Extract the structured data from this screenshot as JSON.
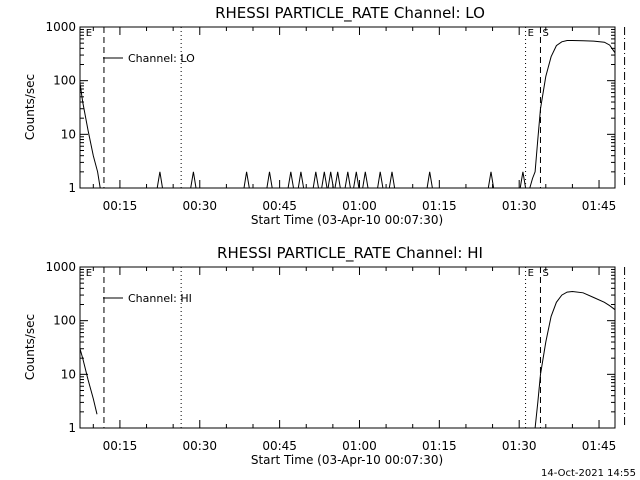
{
  "footer": {
    "date_stamp": "14-Oct-2021 14:55"
  },
  "chart_data": [
    {
      "type": "line",
      "title": "RHESSI PARTICLE_RATE Channel: LO",
      "xlabel": "Start Time (03-Apr-10 00:07:30)",
      "ylabel": "Counts/sec",
      "yscale": "log",
      "ylim": [
        1,
        1000
      ],
      "xlim_minutes": [
        7.5,
        108
      ],
      "x_ticks": [
        "00:15",
        "00:30",
        "00:45",
        "01:00",
        "01:15",
        "01:30",
        "01:45"
      ],
      "x_tick_minutes": [
        15,
        30,
        45,
        60,
        75,
        90,
        105
      ],
      "y_ticks": [
        "1",
        "10",
        "100",
        "1000"
      ],
      "y_tick_values": [
        1,
        10,
        100,
        1000
      ],
      "legend": "Channel: LO",
      "markers": [
        {
          "label": "E",
          "minute": 8.2,
          "style": "none"
        },
        {
          "label": "",
          "minute": 12.0,
          "style": "dashed"
        },
        {
          "label": "",
          "minute": 26.5,
          "style": "dotted"
        },
        {
          "label": "E",
          "minute": 91.2,
          "style": "dotted"
        },
        {
          "label": "S",
          "minute": 94.0,
          "style": "dashed"
        },
        {
          "label": "",
          "minute": 109.8,
          "style": "dashdot"
        }
      ],
      "series": [
        {
          "name": "counts",
          "x": [
            7.5,
            8.0,
            9.0,
            10.0,
            10.8,
            11.3
          ],
          "values": [
            90,
            40,
            12,
            4,
            2,
            1
          ]
        },
        {
          "name": "counts",
          "x": [
            22.0,
            22.5,
            23.0
          ],
          "values": [
            1,
            2,
            1
          ]
        },
        {
          "name": "counts",
          "x": [
            28.3,
            28.8,
            29.3
          ],
          "values": [
            1,
            2,
            1
          ]
        },
        {
          "name": "counts",
          "x": [
            38.3,
            38.8,
            39.3
          ],
          "values": [
            1,
            2,
            1
          ]
        },
        {
          "name": "counts",
          "x": [
            42.6,
            43.1,
            43.6
          ],
          "values": [
            1,
            2,
            1
          ]
        },
        {
          "name": "counts",
          "x": [
            46.6,
            47.1,
            47.6
          ],
          "values": [
            1,
            2,
            1
          ]
        },
        {
          "name": "counts",
          "x": [
            48.5,
            49.0,
            49.5
          ],
          "values": [
            1,
            2,
            1
          ]
        },
        {
          "name": "counts",
          "x": [
            51.3,
            51.8,
            52.3
          ],
          "values": [
            1,
            2,
            1
          ]
        },
        {
          "name": "counts",
          "x": [
            52.9,
            53.4,
            53.9
          ],
          "values": [
            1,
            2,
            1
          ]
        },
        {
          "name": "counts",
          "x": [
            54.1,
            54.6,
            55.1
          ],
          "values": [
            1,
            2,
            1
          ]
        },
        {
          "name": "counts",
          "x": [
            55.4,
            55.9,
            56.4
          ],
          "values": [
            1,
            2,
            1
          ]
        },
        {
          "name": "counts",
          "x": [
            57.3,
            57.8,
            58.3
          ],
          "values": [
            1,
            2,
            1
          ]
        },
        {
          "name": "counts",
          "x": [
            58.9,
            59.4,
            59.9
          ],
          "values": [
            1,
            2,
            1
          ]
        },
        {
          "name": "counts",
          "x": [
            60.6,
            61.1,
            61.6
          ],
          "values": [
            1,
            2,
            1
          ]
        },
        {
          "name": "counts",
          "x": [
            63.4,
            63.9,
            64.4
          ],
          "values": [
            1,
            2,
            1
          ]
        },
        {
          "name": "counts",
          "x": [
            65.6,
            66.1,
            66.6
          ],
          "values": [
            1,
            2,
            1
          ]
        },
        {
          "name": "counts",
          "x": [
            72.7,
            73.2,
            73.7
          ],
          "values": [
            1,
            2,
            1
          ]
        },
        {
          "name": "counts",
          "x": [
            84.2,
            84.7,
            85.2
          ],
          "values": [
            1,
            2,
            1
          ]
        },
        {
          "name": "counts",
          "x": [
            90.2,
            90.7,
            91.2
          ],
          "values": [
            1,
            2,
            1
          ]
        },
        {
          "name": "counts",
          "x": [
            92.0,
            92.5,
            93.0,
            93.5,
            94.0,
            95.0,
            96.0,
            97.0,
            98.0,
            99.0,
            100.0,
            102.0,
            104.0,
            106.0,
            107.0,
            108.0
          ],
          "values": [
            1,
            1.5,
            2,
            8,
            30,
            120,
            280,
            450,
            530,
            560,
            560,
            555,
            545,
            520,
            460,
            330
          ]
        }
      ]
    },
    {
      "type": "line",
      "title": "RHESSI PARTICLE_RATE Channel: HI",
      "xlabel": "Start Time (03-Apr-10 00:07:30)",
      "ylabel": "Counts/sec",
      "yscale": "log",
      "ylim": [
        1,
        1000
      ],
      "xlim_minutes": [
        7.5,
        108
      ],
      "x_ticks": [
        "00:15",
        "00:30",
        "00:45",
        "01:00",
        "01:15",
        "01:30",
        "01:45"
      ],
      "x_tick_minutes": [
        15,
        30,
        45,
        60,
        75,
        90,
        105
      ],
      "y_ticks": [
        "1",
        "10",
        "100",
        "1000"
      ],
      "y_tick_values": [
        1,
        10,
        100,
        1000
      ],
      "legend": "Channel: HI",
      "markers": [
        {
          "label": "E",
          "minute": 8.2,
          "style": "none"
        },
        {
          "label": "",
          "minute": 12.0,
          "style": "dashed"
        },
        {
          "label": "",
          "minute": 26.5,
          "style": "dotted"
        },
        {
          "label": "E",
          "minute": 91.2,
          "style": "dotted"
        },
        {
          "label": "S",
          "minute": 94.0,
          "style": "dashed"
        },
        {
          "label": "",
          "minute": 109.8,
          "style": "dashdot"
        }
      ],
      "series": [
        {
          "name": "counts",
          "x": [
            7.5,
            8.0,
            9.0,
            10.0,
            10.7
          ],
          "values": [
            30,
            20,
            8,
            3.5,
            1.8
          ]
        },
        {
          "name": "counts",
          "x": [
            93.0,
            93.5,
            94.0,
            95.0,
            96.0,
            97.0,
            98.0,
            99.0,
            100.0,
            102.0,
            104.0,
            106.0,
            107.0,
            108.0
          ],
          "values": [
            1,
            3,
            10,
            40,
            120,
            220,
            300,
            340,
            350,
            330,
            270,
            220,
            190,
            160
          ]
        }
      ]
    }
  ]
}
